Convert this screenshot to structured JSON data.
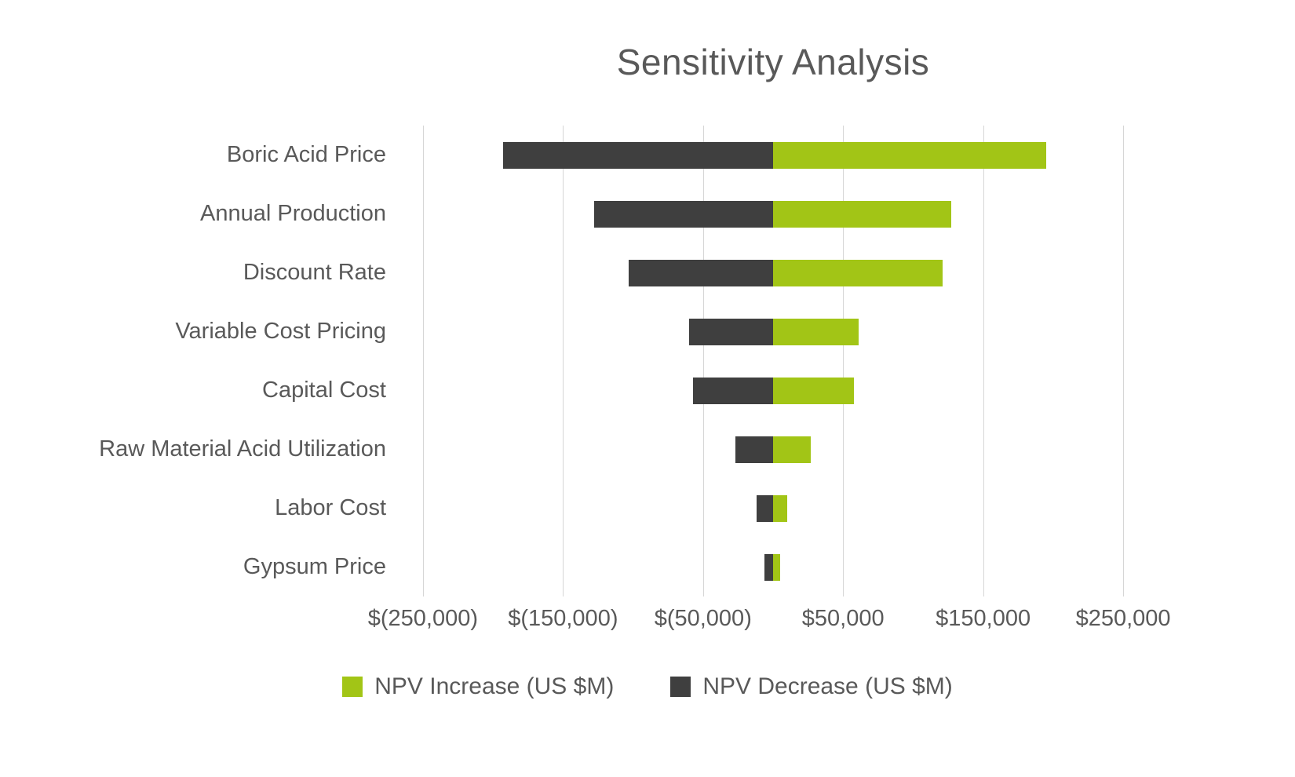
{
  "chart_data": {
    "type": "bar",
    "subtype": "tornado",
    "orientation": "horizontal",
    "title": "Sensitivity Analysis",
    "categories": [
      "Boric Acid Price",
      "Annual Production",
      "Discount Rate",
      "Variable Cost Pricing",
      "Capital Cost",
      "Raw Material Acid Utilization",
      "Labor Cost",
      "Gypsum Price"
    ],
    "series": [
      {
        "name": "NPV Increase (US $M)",
        "color": "#a2c516",
        "values": [
          195000,
          127000,
          121000,
          61000,
          58000,
          27000,
          10000,
          5000
        ]
      },
      {
        "name": "NPV Decrease (US $M)",
        "color": "#3f3f3f",
        "values": [
          -193000,
          -128000,
          -103000,
          -60000,
          -57000,
          -27000,
          -12000,
          -6000
        ]
      }
    ],
    "x_axis": {
      "range": [
        -255000,
        255000
      ],
      "ticks": [
        {
          "label": "$(250,000)",
          "value": -250000
        },
        {
          "label": "$(150,000)",
          "value": -150000
        },
        {
          "label": "$(50,000)",
          "value": -50000
        },
        {
          "label": "$50,000",
          "value": 50000
        },
        {
          "label": "$150,000",
          "value": 150000
        },
        {
          "label": "$250,000",
          "value": 250000
        }
      ]
    },
    "xlabel": "",
    "ylabel": "",
    "grid": true,
    "legend_position": "bottom",
    "colors": {
      "text": "#595959",
      "gridline": "#d6d6d6",
      "background": "#ffffff"
    }
  }
}
